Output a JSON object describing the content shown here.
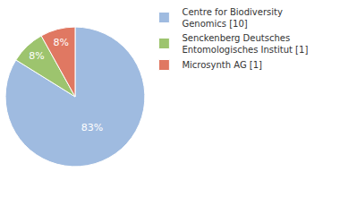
{
  "chart_data": {
    "type": "pie",
    "categories": [
      "Centre for Biodiversity Genomics [10]",
      "Senckenberg Deutsches Entomologisches Institut [1]",
      "Microsynth AG [1]"
    ],
    "values": [
      83,
      8,
      8
    ],
    "value_labels": [
      "83%",
      "8%",
      "8%"
    ],
    "colors": [
      "#9fbbe0",
      "#9dc46e",
      "#e07862"
    ],
    "data_labels": true,
    "legend": "top-right"
  }
}
